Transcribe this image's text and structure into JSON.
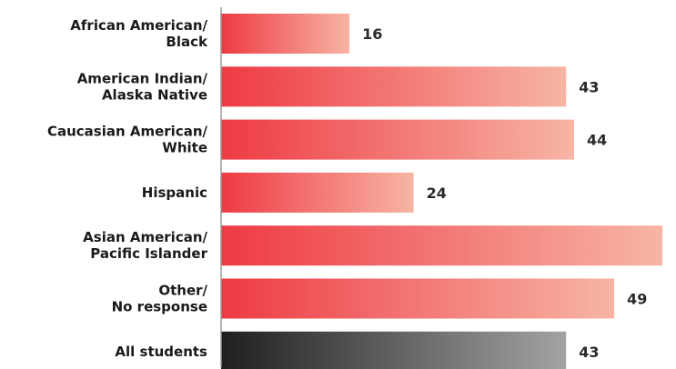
{
  "chart_data": {
    "type": "bar",
    "orientation": "horizontal",
    "categories": [
      [
        "African American/",
        "Black"
      ],
      [
        "American Indian/",
        "Alaska Native"
      ],
      [
        "Caucasian American/",
        "White"
      ],
      [
        "Hispanic"
      ],
      [
        "Asian American/",
        "Pacific Islander"
      ],
      [
        "Other/",
        "No response"
      ],
      [
        "All students"
      ]
    ],
    "values": [
      16,
      43,
      44,
      24,
      55,
      49,
      43
    ],
    "xlim": [
      0,
      55
    ],
    "grid": false,
    "legend": "none",
    "colors": {
      "bar_start": "#ee3a44",
      "bar_end": "#f7b5a4",
      "total_start": "#1f1f1f",
      "total_end": "#a3a3a3",
      "axis": "#9a9a9a"
    },
    "highlight_last": true
  }
}
